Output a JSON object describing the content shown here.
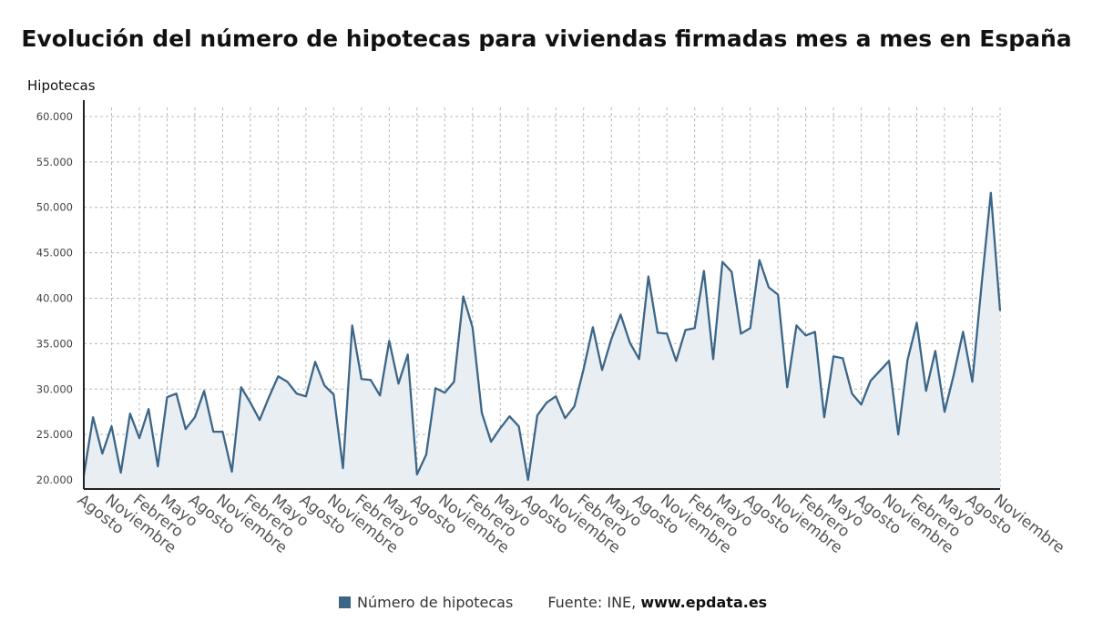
{
  "title": "Evolución del número de hipotecas para viviendas firmadas mes a mes en España",
  "legend": {
    "series_name": "Número de hipotecas"
  },
  "source": {
    "prefix": "Fuente: INE,",
    "site": "www.epdata.es"
  },
  "colors": {
    "line": "#3c6688",
    "area": "#e9eef3",
    "grid": "#b8b8b8",
    "axis": "#222222"
  },
  "chart_data": {
    "type": "area",
    "ylabel": "Hipotecas",
    "ylim": [
      19000,
      61000
    ],
    "yticks": [
      20000,
      25000,
      30000,
      35000,
      40000,
      45000,
      50000,
      55000,
      60000
    ],
    "ytick_labels": [
      "20.000",
      "25.000",
      "30.000",
      "35.000",
      "40.000",
      "45.000",
      "50.000",
      "55.000",
      "60.000"
    ],
    "xtick_labels": [
      "Agosto",
      "Noviembre",
      "Febrero",
      "Mayo",
      "Agosto",
      "Noviembre",
      "Febrero",
      "Mayo",
      "Agosto",
      "Noviembre",
      "Febrero",
      "Mayo",
      "Agosto",
      "Noviembre",
      "Febrero",
      "Mayo",
      "Agosto",
      "Noviembre",
      "Febrero",
      "Mayo",
      "Agosto",
      "Noviembre",
      "Febrero",
      "Mayo",
      "Agosto",
      "Noviembre",
      "Febrero",
      "Mayo",
      "Agosto",
      "Noviembre",
      "Febrero",
      "Mayo",
      "Agosto",
      "Noviembre"
    ],
    "tick_every_n_months": 3,
    "grid": true,
    "legend_position": "bottom",
    "series": [
      {
        "name": "Número de hipotecas",
        "values": [
          20500,
          26900,
          22900,
          25900,
          20800,
          27300,
          24600,
          27800,
          21500,
          29100,
          29500,
          25600,
          26900,
          29800,
          25300,
          25300,
          20900,
          30200,
          28500,
          26600,
          29100,
          31400,
          30800,
          29500,
          29200,
          33000,
          30400,
          29400,
          21300,
          37000,
          31100,
          31000,
          29300,
          35300,
          30600,
          33800,
          20600,
          22800,
          30100,
          29600,
          30800,
          40200,
          36800,
          27400,
          24200,
          25700,
          27000,
          25900,
          20000,
          27100,
          28500,
          29200,
          26800,
          28100,
          32200,
          36800,
          32100,
          35500,
          38200,
          35100,
          33300,
          42400,
          36200,
          36100,
          33100,
          36500,
          36700,
          43000,
          33300,
          44000,
          42900,
          36100,
          36700,
          44200,
          41200,
          40400,
          30200,
          37000,
          35900,
          36300,
          26900,
          33600,
          33400,
          29500,
          28300,
          30900,
          32000,
          33100,
          25000,
          33200,
          37300,
          29800,
          34200,
          27500,
          31600,
          36300,
          30800,
          41500,
          51600,
          38600
        ]
      }
    ]
  }
}
